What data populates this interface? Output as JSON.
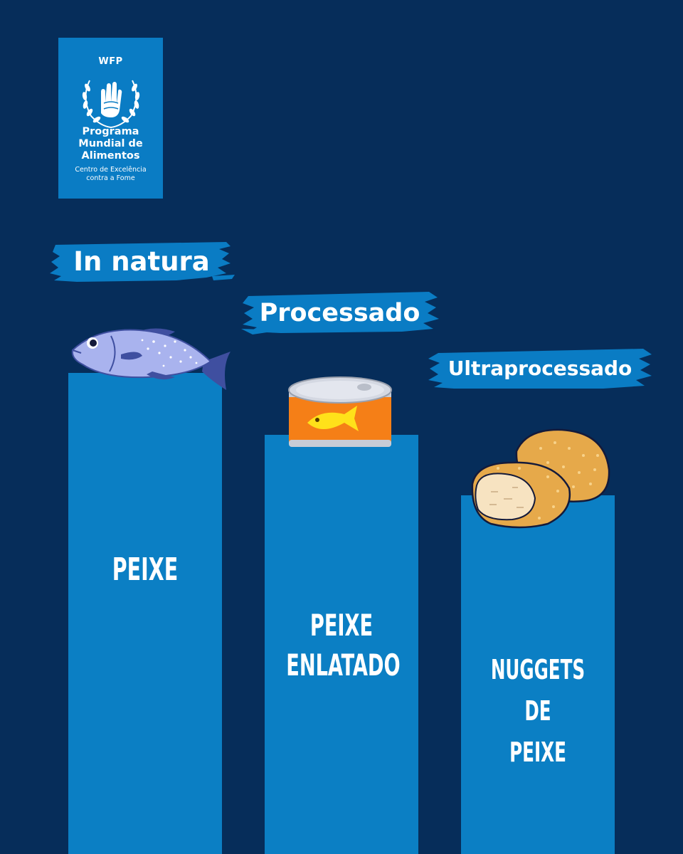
{
  "logo": {
    "acronym": "WFP",
    "name_line1": "Programa",
    "name_line2": "Mundial de",
    "name_line3": "Alimentos",
    "sub_line1": "Centro de Excelência",
    "sub_line2": "contra a Fome"
  },
  "categories": [
    {
      "label": "In natura",
      "bar_text": "PEIXE",
      "icon": "fish-icon"
    },
    {
      "label": "Processado",
      "bar_text_line1": "PEIXE",
      "bar_text_line2": "ENLATADO",
      "icon": "canned-fish-icon"
    },
    {
      "label": "Ultraprocessado",
      "bar_text_line1": "NUGGETS DE",
      "bar_text_line2": "PEIXE",
      "icon": "fish-nuggets-icon"
    }
  ],
  "colors": {
    "background": "#062d5a",
    "bar": "#0b7fc4",
    "brush": "#0a7cc4",
    "text": "#ffffff"
  }
}
